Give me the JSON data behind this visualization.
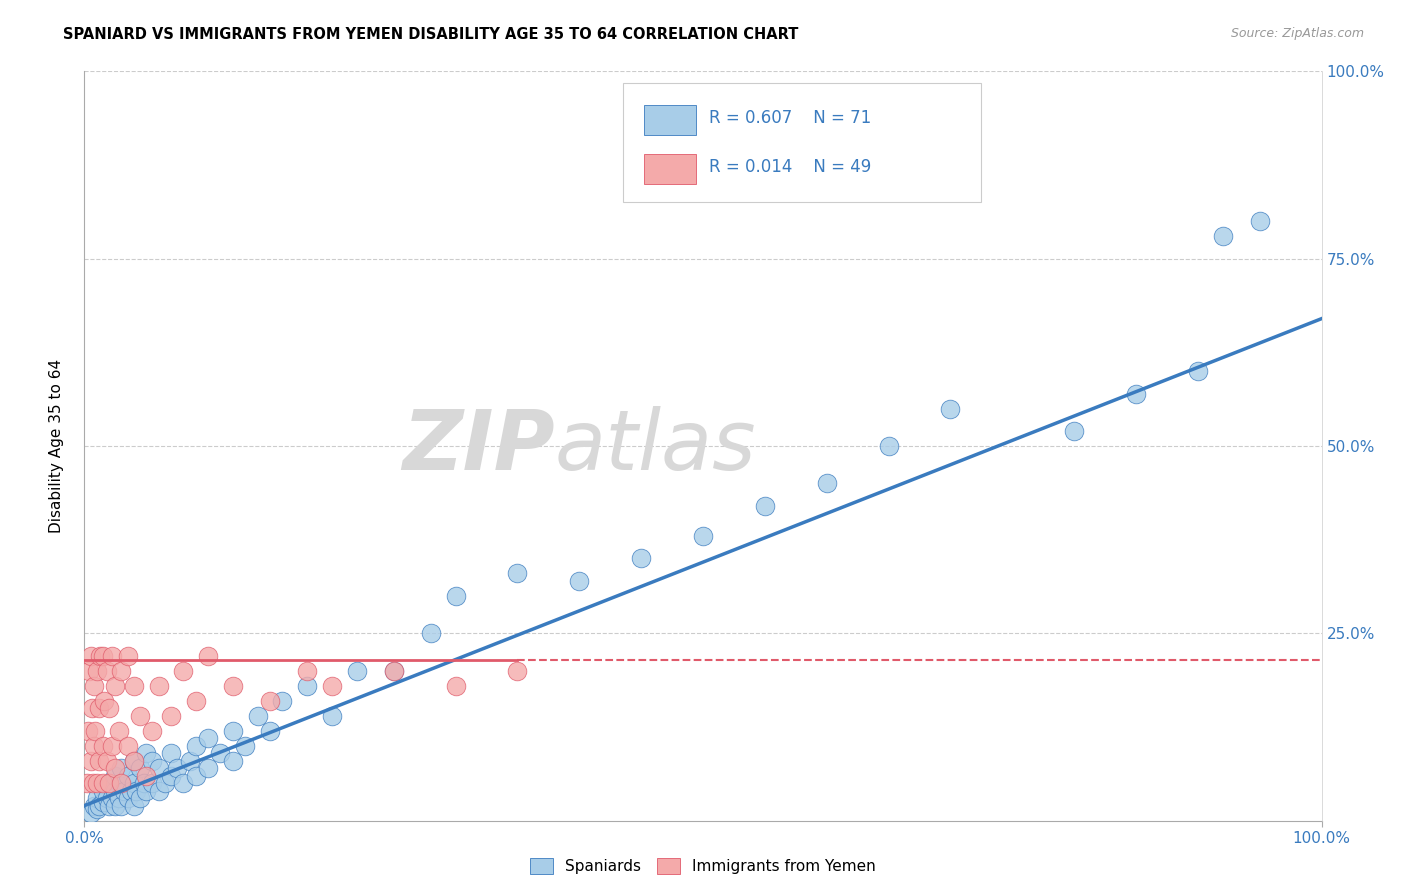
{
  "title": "SPANIARD VS IMMIGRANTS FROM YEMEN DISABILITY AGE 35 TO 64 CORRELATION CHART",
  "source": "Source: ZipAtlas.com",
  "ylabel": "Disability Age 35 to 64",
  "xlim": [
    0,
    1.0
  ],
  "ylim": [
    0,
    1.0
  ],
  "color_blue": "#a8cde8",
  "color_pink": "#f4aaaa",
  "color_line_blue": "#3a7bbf",
  "color_line_pink": "#e05a6a",
  "watermark_zip": "ZIP",
  "watermark_atlas": "atlas",
  "blue_line_y0": 0.02,
  "blue_line_y1": 0.67,
  "pink_line_y0": 0.215,
  "pink_line_y1": 0.215,
  "blue_x": [
    0.005,
    0.008,
    0.01,
    0.01,
    0.012,
    0.015,
    0.015,
    0.018,
    0.02,
    0.02,
    0.022,
    0.025,
    0.025,
    0.025,
    0.028,
    0.03,
    0.03,
    0.03,
    0.032,
    0.035,
    0.035,
    0.038,
    0.04,
    0.04,
    0.04,
    0.042,
    0.045,
    0.045,
    0.048,
    0.05,
    0.05,
    0.055,
    0.055,
    0.06,
    0.06,
    0.065,
    0.07,
    0.07,
    0.075,
    0.08,
    0.085,
    0.09,
    0.09,
    0.1,
    0.1,
    0.11,
    0.12,
    0.12,
    0.13,
    0.14,
    0.15,
    0.16,
    0.18,
    0.2,
    0.22,
    0.25,
    0.28,
    0.3,
    0.35,
    0.4,
    0.45,
    0.5,
    0.55,
    0.6,
    0.65,
    0.7,
    0.8,
    0.85,
    0.9,
    0.92,
    0.95
  ],
  "blue_y": [
    0.01,
    0.02,
    0.015,
    0.03,
    0.02,
    0.025,
    0.04,
    0.03,
    0.02,
    0.05,
    0.03,
    0.02,
    0.04,
    0.06,
    0.03,
    0.02,
    0.05,
    0.07,
    0.04,
    0.03,
    0.06,
    0.04,
    0.02,
    0.05,
    0.08,
    0.04,
    0.03,
    0.07,
    0.05,
    0.04,
    0.09,
    0.05,
    0.08,
    0.04,
    0.07,
    0.05,
    0.06,
    0.09,
    0.07,
    0.05,
    0.08,
    0.06,
    0.1,
    0.07,
    0.11,
    0.09,
    0.08,
    0.12,
    0.1,
    0.14,
    0.12,
    0.16,
    0.18,
    0.14,
    0.2,
    0.2,
    0.25,
    0.3,
    0.33,
    0.32,
    0.35,
    0.38,
    0.42,
    0.45,
    0.5,
    0.55,
    0.52,
    0.57,
    0.6,
    0.78,
    0.8
  ],
  "pink_x": [
    0.002,
    0.003,
    0.004,
    0.005,
    0.005,
    0.006,
    0.007,
    0.008,
    0.008,
    0.009,
    0.01,
    0.01,
    0.012,
    0.012,
    0.013,
    0.015,
    0.015,
    0.015,
    0.016,
    0.018,
    0.018,
    0.02,
    0.02,
    0.022,
    0.022,
    0.025,
    0.025,
    0.028,
    0.03,
    0.03,
    0.035,
    0.035,
    0.04,
    0.04,
    0.045,
    0.05,
    0.055,
    0.06,
    0.07,
    0.08,
    0.09,
    0.1,
    0.12,
    0.15,
    0.18,
    0.2,
    0.25,
    0.3,
    0.35
  ],
  "pink_y": [
    0.05,
    0.12,
    0.2,
    0.08,
    0.22,
    0.15,
    0.05,
    0.1,
    0.18,
    0.12,
    0.05,
    0.2,
    0.08,
    0.15,
    0.22,
    0.05,
    0.1,
    0.22,
    0.16,
    0.08,
    0.2,
    0.05,
    0.15,
    0.1,
    0.22,
    0.07,
    0.18,
    0.12,
    0.05,
    0.2,
    0.1,
    0.22,
    0.08,
    0.18,
    0.14,
    0.06,
    0.12,
    0.18,
    0.14,
    0.2,
    0.16,
    0.22,
    0.18,
    0.16,
    0.2,
    0.18,
    0.2,
    0.18,
    0.2
  ]
}
